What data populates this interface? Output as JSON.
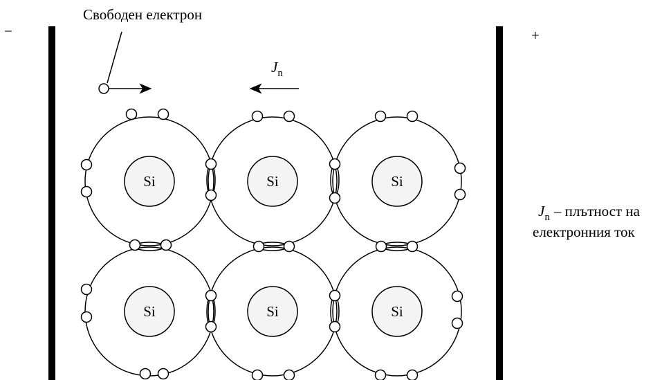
{
  "labels": {
    "minus": "−",
    "plus": "+",
    "free_electron": "Свободен електрон",
    "current_symbol": {
      "main": "J",
      "sub": "n"
    },
    "legend": {
      "symbol": {
        "main": "J",
        "sub": "n"
      },
      "line1": "– плътност на",
      "line2": "електронния ток"
    }
  },
  "atoms": [
    {
      "label": "Si"
    },
    {
      "label": "Si"
    },
    {
      "label": "Si"
    },
    {
      "label": "Si"
    },
    {
      "label": "Si"
    },
    {
      "label": "Si"
    }
  ]
}
